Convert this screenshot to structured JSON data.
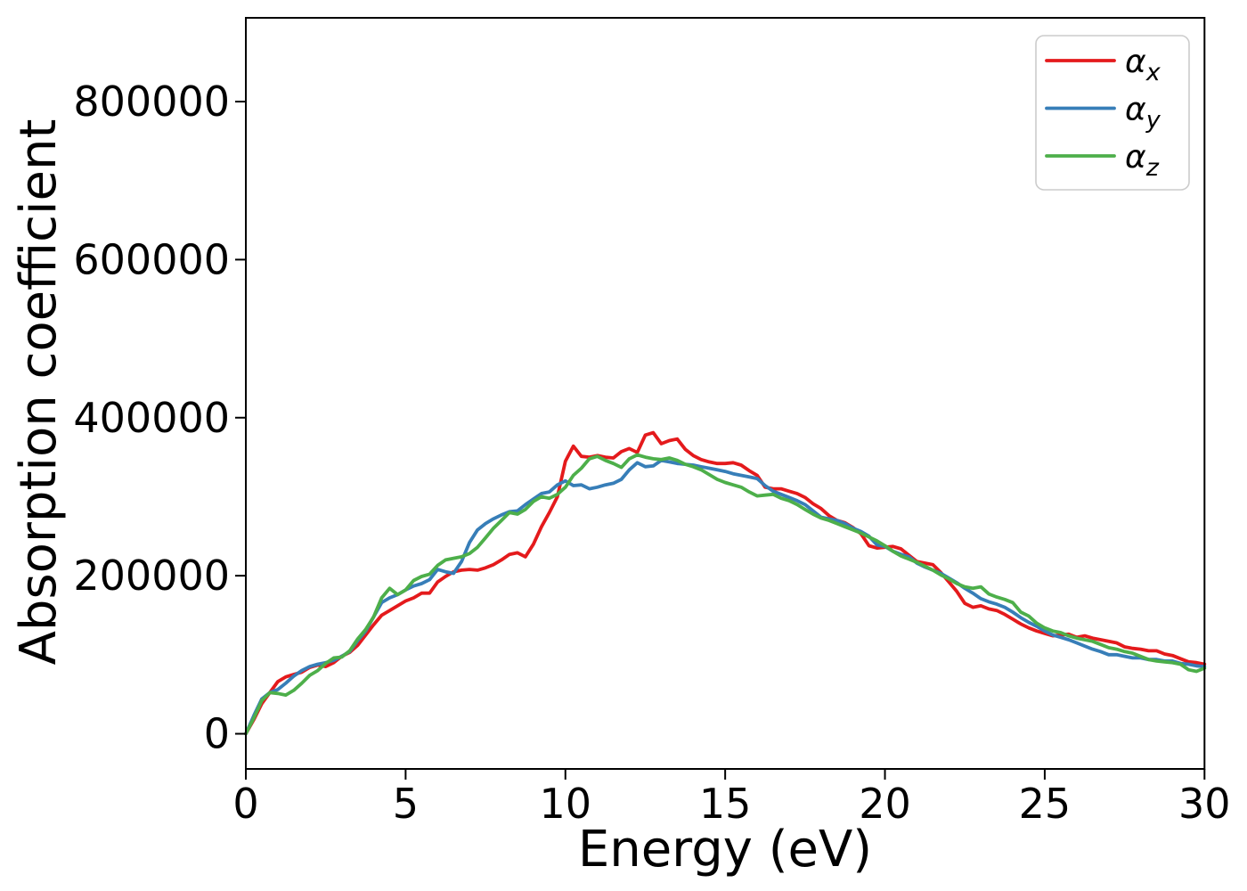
{
  "figure": {
    "background": "#ffffff",
    "text_color": "#000000",
    "spine_color": "#000000"
  },
  "chart_data": {
    "type": "line",
    "title": "",
    "xlabel": "Energy (eV)",
    "ylabel": "Absorption coefficient",
    "xlim": [
      0,
      30
    ],
    "ylim": [
      -44500,
      906000
    ],
    "grid": false,
    "legend_position": "upper right",
    "x_ticks": {
      "values": [
        0,
        5,
        10,
        15,
        20,
        25,
        30
      ],
      "labels": [
        "0",
        "5",
        "10",
        "15",
        "20",
        "25",
        "30"
      ]
    },
    "y_ticks": {
      "values": [
        0,
        200000,
        400000,
        600000,
        800000
      ],
      "labels": [
        "0",
        "200000",
        "400000",
        "600000",
        "800000"
      ]
    },
    "x": [
      0,
      0.25,
      0.5,
      0.75,
      1,
      1.25,
      1.5,
      1.75,
      2,
      2.25,
      2.5,
      2.75,
      3,
      3.25,
      3.5,
      3.75,
      4,
      4.25,
      4.5,
      4.75,
      5,
      5.25,
      5.5,
      5.75,
      6,
      6.25,
      6.5,
      6.75,
      7,
      7.25,
      7.5,
      7.75,
      8,
      8.25,
      8.5,
      8.75,
      9,
      9.25,
      9.5,
      9.75,
      10,
      10.25,
      10.5,
      10.75,
      11,
      11.25,
      11.5,
      11.75,
      12,
      12.25,
      12.5,
      12.75,
      13,
      13.25,
      13.5,
      13.75,
      14,
      14.25,
      14.5,
      14.75,
      15,
      15.25,
      15.5,
      15.75,
      16,
      16.25,
      16.5,
      16.75,
      17,
      17.25,
      17.5,
      17.75,
      18,
      18.25,
      18.5,
      18.75,
      19,
      19.25,
      19.5,
      19.75,
      20,
      20.25,
      20.5,
      20.75,
      21,
      21.25,
      21.5,
      21.75,
      22,
      22.25,
      22.5,
      22.75,
      23,
      23.25,
      23.5,
      23.75,
      24,
      24.25,
      24.5,
      24.75,
      25,
      25.25,
      25.5,
      25.75,
      26,
      26.25,
      26.5,
      26.75,
      27,
      27.25,
      27.5,
      27.75,
      28,
      28.25,
      28.5,
      28.75,
      29,
      29.25,
      29.5,
      29.75,
      30
    ],
    "series": [
      {
        "name": "alpha_x",
        "label": "α",
        "sub": "x",
        "color": "#e41a1c",
        "values": [
          0,
          18000,
          38000,
          52000,
          66000,
          72000,
          75000,
          78000,
          84000,
          87000,
          85000,
          90000,
          98000,
          103000,
          112000,
          125000,
          138000,
          150000,
          156000,
          162000,
          168000,
          172000,
          178000,
          178000,
          192000,
          199000,
          205000,
          207000,
          208000,
          207000,
          210000,
          214000,
          220000,
          227000,
          229000,
          224000,
          240000,
          262000,
          280000,
          300000,
          345000,
          364000,
          351000,
          350000,
          352000,
          350000,
          349000,
          357000,
          361000,
          356000,
          378000,
          381000,
          367000,
          371000,
          373000,
          360000,
          352000,
          347000,
          344000,
          342000,
          342000,
          343000,
          340000,
          333000,
          327000,
          312000,
          310000,
          310000,
          307000,
          304000,
          299000,
          291000,
          285000,
          276000,
          270000,
          267000,
          261000,
          253000,
          238000,
          235000,
          236000,
          237000,
          234000,
          226000,
          218000,
          216000,
          214000,
          204000,
          192000,
          180000,
          165000,
          160000,
          162000,
          158000,
          156000,
          151000,
          145000,
          139000,
          134000,
          130000,
          127000,
          124000,
          125000,
          126000,
          122000,
          124000,
          121000,
          119000,
          117000,
          115000,
          110000,
          108000,
          107000,
          105000,
          105000,
          101000,
          99000,
          95000,
          91000,
          90000,
          88000
        ]
      },
      {
        "name": "alpha_y",
        "label": "α",
        "sub": "y",
        "color": "#377eb8",
        "values": [
          0,
          23000,
          44000,
          52000,
          56000,
          64000,
          73000,
          80000,
          85000,
          88000,
          90000,
          93000,
          98000,
          104000,
          118000,
          130000,
          148000,
          166000,
          172000,
          176000,
          182000,
          187000,
          190000,
          195000,
          208000,
          205000,
          203000,
          218000,
          242000,
          258000,
          266000,
          272000,
          277000,
          281000,
          282000,
          290000,
          297000,
          304000,
          306000,
          315000,
          320000,
          314000,
          315000,
          310000,
          312000,
          315000,
          317000,
          322000,
          334000,
          343000,
          338000,
          339000,
          346000,
          344000,
          342000,
          341000,
          340000,
          338000,
          336000,
          334000,
          332000,
          329000,
          327000,
          325000,
          323000,
          314000,
          307000,
          303000,
          299000,
          295000,
          290000,
          282000,
          274000,
          272000,
          270000,
          266000,
          260000,
          256000,
          250000,
          239000,
          237000,
          231000,
          227000,
          224000,
          216000,
          211000,
          207000,
          203000,
          197000,
          191000,
          184000,
          178000,
          171000,
          167000,
          164000,
          160000,
          154000,
          147000,
          141000,
          136000,
          130000,
          125000,
          122000,
          119000,
          115000,
          111000,
          107000,
          104000,
          100000,
          100000,
          98000,
          96000,
          96000,
          94000,
          94000,
          92000,
          92000,
          89000,
          88000,
          86000,
          85000
        ]
      },
      {
        "name": "alpha_z",
        "label": "α",
        "sub": "z",
        "color": "#4daf4a",
        "values": [
          0,
          20000,
          42000,
          52000,
          51000,
          49000,
          55000,
          64000,
          74000,
          80000,
          89000,
          96000,
          97000,
          105000,
          120000,
          132000,
          148000,
          172000,
          184000,
          176000,
          182000,
          194000,
          199000,
          202000,
          213000,
          220000,
          222000,
          224000,
          228000,
          236000,
          248000,
          260000,
          270000,
          280000,
          278000,
          284000,
          294000,
          300000,
          298000,
          303000,
          312000,
          327000,
          336000,
          348000,
          351000,
          346000,
          342000,
          337000,
          348000,
          353000,
          350000,
          348000,
          347000,
          349000,
          346000,
          341000,
          338000,
          334000,
          328000,
          322000,
          318000,
          315000,
          312000,
          306000,
          301000,
          302000,
          303000,
          298000,
          295000,
          290000,
          284000,
          278000,
          273000,
          270000,
          266000,
          262000,
          258000,
          254000,
          249000,
          244000,
          238000,
          231000,
          225000,
          221000,
          217000,
          212000,
          207000,
          201000,
          196000,
          190000,
          186000,
          184000,
          186000,
          177000,
          173000,
          170000,
          166000,
          154000,
          149000,
          140000,
          134000,
          130000,
          128000,
          124000,
          121000,
          119000,
          117000,
          113000,
          109000,
          107000,
          104000,
          102000,
          98000,
          94000,
          92000,
          91000,
          90000,
          88000,
          81000,
          79000,
          83000
        ]
      }
    ]
  }
}
